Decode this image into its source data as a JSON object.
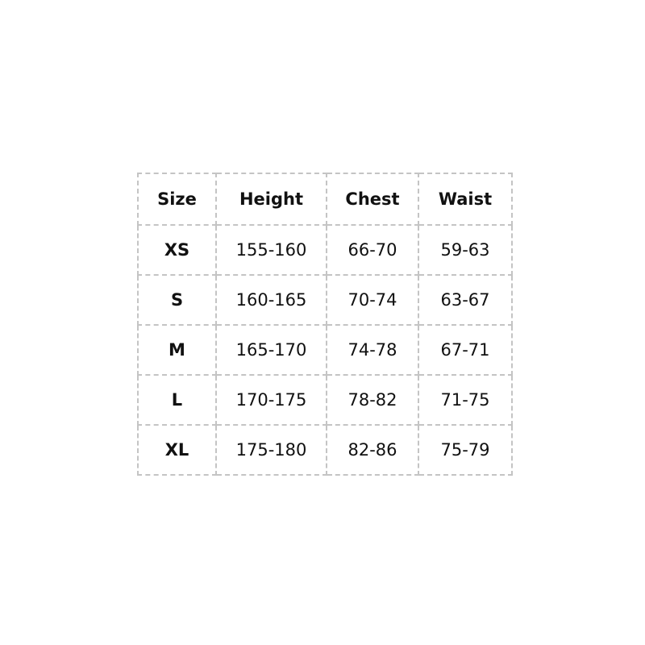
{
  "table": {
    "header": [
      "Size",
      "Height",
      "Chest",
      "Waist"
    ],
    "rows": [
      [
        "XS",
        "155-160",
        "66-70",
        "59-63"
      ],
      [
        "S",
        "160-165",
        "70-74",
        "63-67"
      ],
      [
        "M",
        "165-170",
        "74-78",
        "67-71"
      ],
      [
        "L",
        "170-175",
        "78-82",
        "71-75"
      ],
      [
        "XL",
        "175-180",
        "82-86",
        "75-79"
      ]
    ]
  }
}
